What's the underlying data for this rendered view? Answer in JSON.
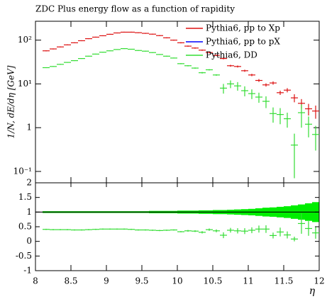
{
  "chart_data": {
    "type": "histogram",
    "title": "ZDC Plus energy flow as a function of rapidity",
    "ylabel": "1/N, dE/dη [GeV]",
    "xlabel": "η",
    "yscale": "log",
    "legend": "upper right",
    "xlim": [
      8,
      12
    ],
    "xticks": [
      8,
      8.5,
      9,
      9.5,
      10,
      10.5,
      11,
      11.5,
      12
    ],
    "ylim": [
      0.055,
      270
    ],
    "yticks": [
      {
        "value": 0.1,
        "label": "10⁻¹"
      },
      1,
      {
        "value": 10,
        "label": "10¹"
      },
      {
        "value": 100,
        "label": "10²"
      }
    ],
    "bins": [
      8.1,
      8.2,
      8.3,
      8.4,
      8.5,
      8.6,
      8.7,
      8.8,
      8.9,
      9.0,
      9.1,
      9.2,
      9.3,
      9.4,
      9.5,
      9.6,
      9.7,
      9.8,
      9.9,
      10.0,
      10.1,
      10.2,
      10.3,
      10.4,
      10.5,
      10.6,
      10.7,
      10.8,
      10.9,
      11.0,
      11.1,
      11.2,
      11.3,
      11.4,
      11.5,
      11.6,
      11.7,
      11.8,
      11.9,
      12.0
    ],
    "series": [
      {
        "name": "Pythia6, pp to Xp",
        "color": "#dd1111",
        "values": [
          57,
          63,
          70,
          78,
          87,
          97,
          108,
          117,
          126,
          136,
          146,
          152,
          152,
          148,
          143,
          137,
          127,
          113,
          100,
          87,
          73,
          66,
          59,
          52,
          45,
          38,
          26,
          25,
          20,
          16,
          12,
          9.5,
          10.5,
          6.3,
          7.2,
          4.8,
          3.6,
          2.7,
          2.4
        ],
        "errors": [
          1.5,
          1.6,
          1.7,
          1.9,
          2,
          2.2,
          2.4,
          2.6,
          2.8,
          3,
          3.2,
          3.3,
          3.4,
          3.4,
          3.4,
          3.3,
          3.2,
          3,
          2.8,
          2.6,
          2.3,
          2.2,
          2,
          1.9,
          1.8,
          1.6,
          1.3,
          1.3,
          1.1,
          1,
          0.9,
          0.8,
          0.9,
          0.7,
          0.8,
          1,
          0.9,
          0.8,
          0.8
        ]
      },
      {
        "name": "Pythia6, pp to pX",
        "color": "#0000ff",
        "values": [
          null,
          null,
          null,
          null,
          null,
          null,
          null,
          null,
          null,
          null,
          null,
          null,
          null,
          null,
          null,
          null,
          null,
          null,
          null,
          null,
          null,
          null,
          null,
          null,
          null,
          null,
          null,
          null,
          null,
          null,
          null,
          null,
          null,
          null,
          null,
          null,
          null,
          null,
          null
        ]
      },
      {
        "name": "Pythia6, DD",
        "color": "#33dd33",
        "values": [
          23.5,
          25,
          28,
          31,
          34,
          38,
          43,
          48,
          53,
          57,
          61,
          64,
          62,
          58,
          56,
          52,
          47,
          43,
          39,
          29,
          26,
          23,
          18,
          21,
          16,
          8,
          10,
          9,
          7,
          6,
          5,
          4,
          2.1,
          2,
          1.6,
          0.4,
          2.2,
          1.2,
          0.7
        ],
        "errors": [
          0.5,
          0.5,
          0.6,
          0.6,
          0.7,
          0.7,
          0.8,
          0.9,
          1,
          1,
          1.1,
          1.1,
          1.1,
          1.1,
          1.1,
          1,
          1,
          1,
          0.9,
          0.8,
          0.8,
          0.7,
          0.7,
          0.7,
          0.6,
          2,
          2,
          2,
          1.8,
          1.5,
          1.3,
          1.2,
          0.8,
          0.8,
          0.6,
          0.33,
          1.2,
          0.6,
          0.4
        ]
      }
    ],
    "ratio": {
      "ylim": [
        -1,
        2
      ],
      "yticks": [
        -1,
        -0.5,
        0,
        0.5,
        1,
        1.5,
        2
      ],
      "reference": 1,
      "band_color": "#00ee00",
      "band": [
        0.03,
        0.03,
        0.03,
        0.03,
        0.03,
        0.03,
        0.03,
        0.03,
        0.03,
        0.03,
        0.03,
        0.03,
        0.03,
        0.03,
        0.03,
        0.04,
        0.04,
        0.04,
        0.04,
        0.05,
        0.05,
        0.05,
        0.06,
        0.06,
        0.07,
        0.07,
        0.08,
        0.09,
        0.1,
        0.11,
        0.13,
        0.15,
        0.16,
        0.18,
        0.2,
        0.23,
        0.26,
        0.3,
        0.34
      ],
      "color": "#33dd33",
      "values": [
        0.41,
        0.4,
        0.4,
        0.4,
        0.39,
        0.39,
        0.4,
        0.41,
        0.42,
        0.42,
        0.42,
        0.42,
        0.41,
        0.39,
        0.39,
        0.38,
        0.37,
        0.38,
        0.39,
        0.33,
        0.36,
        0.35,
        0.31,
        0.4,
        0.36,
        0.21,
        0.38,
        0.36,
        0.35,
        0.38,
        0.42,
        0.42,
        0.2,
        0.32,
        0.22,
        0.08,
        0.61,
        0.44,
        0.29
      ],
      "errors": [
        0.02,
        0.02,
        0.02,
        0.02,
        0.02,
        0.02,
        0.02,
        0.02,
        0.02,
        0.02,
        0.02,
        0.02,
        0.02,
        0.02,
        0.02,
        0.02,
        0.02,
        0.02,
        0.02,
        0.02,
        0.03,
        0.03,
        0.04,
        0.04,
        0.05,
        0.1,
        0.08,
        0.09,
        0.1,
        0.1,
        0.12,
        0.13,
        0.1,
        0.15,
        0.12,
        0.08,
        0.35,
        0.25,
        0.2
      ]
    }
  }
}
